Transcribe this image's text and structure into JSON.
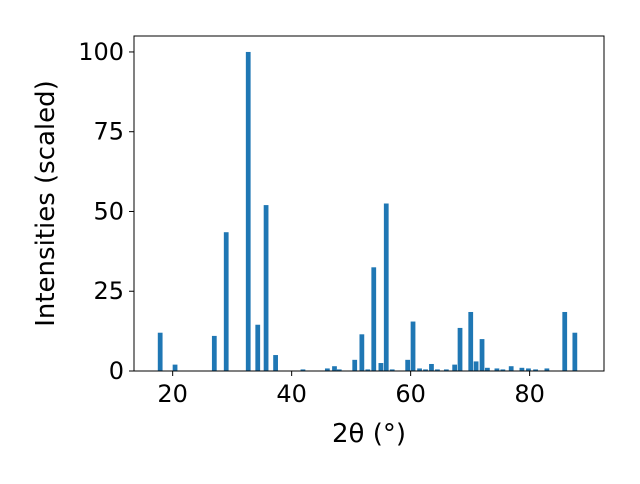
{
  "chart_data": {
    "type": "bar",
    "xlabel": "2θ (°)",
    "ylabel": "Intensities (scaled)",
    "xlim": [
      13.5,
      92.5
    ],
    "ylim": [
      0,
      105
    ],
    "xticks": [
      20,
      40,
      60,
      80
    ],
    "yticks": [
      0,
      25,
      50,
      75,
      100
    ],
    "bar_width": 0.8,
    "bar_color": "#1f77b4",
    "grid": false,
    "x": [
      17.9,
      20.4,
      27.0,
      29.0,
      32.7,
      34.3,
      35.7,
      37.3,
      41.9,
      46.0,
      47.2,
      48.0,
      50.6,
      51.8,
      52.8,
      53.8,
      55.0,
      55.9,
      56.9,
      59.5,
      60.4,
      61.5,
      62.5,
      63.5,
      64.5,
      66.0,
      67.4,
      68.3,
      70.1,
      71.0,
      72.0,
      72.9,
      74.5,
      75.5,
      76.9,
      78.7,
      79.8,
      81.0,
      82.9,
      85.9,
      87.6
    ],
    "values": [
      12,
      2,
      11,
      43.5,
      100,
      14.5,
      52,
      5,
      0.5,
      0.8,
      1.5,
      0.5,
      3.5,
      11.5,
      0.5,
      32.5,
      2.5,
      52.5,
      0.5,
      3.5,
      15.5,
      0.8,
      0.5,
      2.2,
      0.5,
      0.5,
      2,
      13.5,
      18.5,
      3,
      10,
      1,
      0.8,
      0.5,
      1.5,
      1,
      0.8,
      0.5,
      0.8,
      18.5,
      12
    ]
  }
}
